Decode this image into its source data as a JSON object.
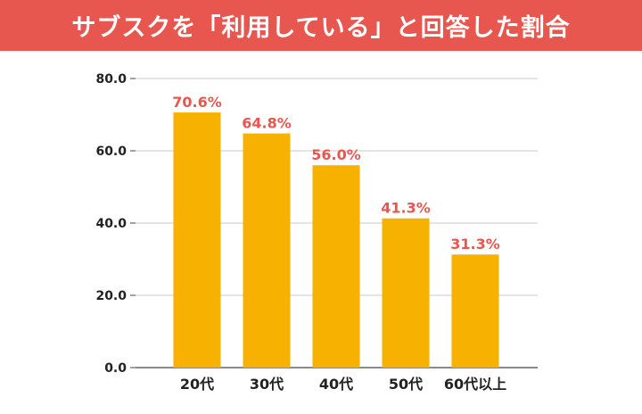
{
  "title": "サブスクを「利用している」と回答した割合",
  "colors": {
    "banner": "#e8574f",
    "bar": "#f7b100",
    "value_label": "#e8574f",
    "grid": "#c8c8c8",
    "axis_text": "#222222"
  },
  "chart_data": {
    "type": "bar",
    "title": "サブスクを「利用している」と回答した割合",
    "categories": [
      "20代",
      "30代",
      "40代",
      "50代",
      "60代以上"
    ],
    "values": [
      70.6,
      64.8,
      56.0,
      41.3,
      31.3
    ],
    "value_labels": [
      "70.6%",
      "64.8%",
      "56.0%",
      "41.3%",
      "31.3%"
    ],
    "y_ticks": [
      "0.0",
      "20.0",
      "40.0",
      "60.0",
      "80.0"
    ],
    "y_tick_values": [
      0,
      20,
      40,
      60,
      80
    ],
    "ylim": [
      0,
      80
    ],
    "xlabel": "",
    "ylabel": "",
    "grid": true,
    "legend": "none"
  }
}
